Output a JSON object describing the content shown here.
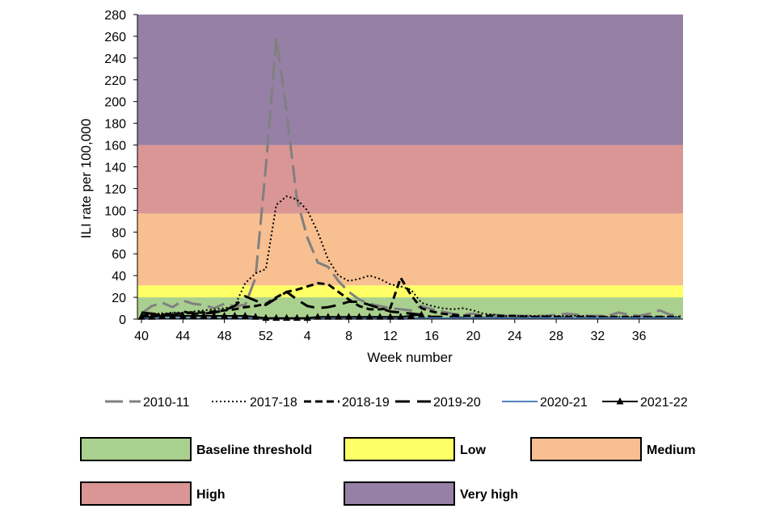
{
  "chart_data": {
    "type": "line",
    "title": "",
    "xlabel": "Week number",
    "ylabel": "ILI rate per 100,000",
    "ylim": [
      0,
      280
    ],
    "y_ticks": [
      0,
      20,
      40,
      60,
      80,
      100,
      120,
      140,
      160,
      180,
      200,
      220,
      240,
      260,
      280
    ],
    "x_tick_labels": [
      "40",
      "44",
      "48",
      "52",
      "4",
      "8",
      "12",
      "16",
      "20",
      "24",
      "28",
      "32",
      "36"
    ],
    "weeks": [
      40,
      41,
      42,
      43,
      44,
      45,
      46,
      47,
      48,
      49,
      50,
      51,
      52,
      53,
      1,
      2,
      3,
      4,
      5,
      6,
      7,
      8,
      9,
      10,
      11,
      12,
      13,
      14,
      15,
      16,
      17,
      18,
      19,
      20,
      21,
      22,
      23,
      24,
      25,
      26,
      27,
      28,
      29,
      30,
      31,
      32,
      33,
      34,
      35,
      36,
      37,
      38,
      39
    ],
    "grid": false,
    "legend_position": "bottom",
    "bands": [
      {
        "name": "Baseline threshold",
        "from": 0,
        "to": 20,
        "color": "#a9d08e"
      },
      {
        "name": "Low",
        "from": 20,
        "to": 31,
        "color": "#ffff66"
      },
      {
        "name": "Medium",
        "from": 31,
        "to": 97,
        "color": "#f8bf90"
      },
      {
        "name": "High",
        "from": 97,
        "to": 160,
        "color": "#da9694"
      },
      {
        "name": "Very high",
        "from": 160,
        "to": 280,
        "color": "#9680a6"
      }
    ],
    "series": [
      {
        "name": "2010-11",
        "color": "#808080",
        "dash": "22 8",
        "width": 3,
        "values": [
          5,
          12,
          15,
          11,
          17,
          14,
          13,
          10,
          14,
          12,
          13,
          38,
          140,
          258,
          190,
          110,
          75,
          52,
          48,
          35,
          25,
          18,
          14,
          12,
          10,
          9,
          8,
          12,
          9,
          7,
          5,
          4,
          5,
          3,
          4,
          3,
          3,
          3,
          3,
          3,
          4,
          5,
          4,
          3,
          3,
          3,
          6,
          4,
          3,
          5,
          8,
          4,
          4
        ]
      },
      {
        "name": "2017-18",
        "color": "#000000",
        "dash": "2 3",
        "width": 2,
        "values": [
          4,
          5,
          5,
          6,
          6,
          7,
          8,
          9,
          10,
          12,
          33,
          42,
          46,
          105,
          113,
          110,
          100,
          80,
          55,
          40,
          35,
          37,
          40,
          37,
          32,
          30,
          27,
          15,
          12,
          10,
          9,
          10,
          8,
          5,
          4,
          3,
          3,
          3,
          3,
          3,
          3,
          3,
          3,
          3,
          2,
          2,
          2,
          2,
          2,
          2,
          2,
          2,
          2
        ]
      },
      {
        "name": "2018-19",
        "color": "#000000",
        "dash": "9 5",
        "width": 3,
        "values": [
          3,
          4,
          4,
          5,
          5,
          6,
          6,
          7,
          8,
          9,
          11,
          12,
          14,
          20,
          25,
          27,
          30,
          33,
          32,
          25,
          18,
          12,
          9,
          9,
          10,
          38,
          22,
          10,
          7,
          5,
          4,
          3,
          3,
          3,
          3,
          3,
          3,
          2,
          2,
          2,
          2,
          2,
          2,
          2,
          2,
          2,
          2,
          2,
          2,
          2,
          2,
          2,
          2
        ]
      },
      {
        "name": "2019-20",
        "color": "#000000",
        "dash": "18 9",
        "width": 3,
        "values": [
          6,
          5,
          4,
          3,
          7,
          5,
          5,
          6,
          8,
          12,
          21,
          17,
          13,
          19,
          25,
          18,
          12,
          10,
          11,
          13,
          16,
          16,
          13,
          10,
          7,
          6,
          5,
          4,
          2,
          2,
          2,
          1,
          1,
          1,
          1,
          1,
          1,
          1,
          1,
          1,
          1,
          1,
          1,
          1,
          1,
          1,
          1,
          1,
          1,
          1,
          1,
          1,
          1
        ]
      },
      {
        "name": "2020-21",
        "color": "#4f81bd",
        "dash": "",
        "width": 2,
        "values": [
          1,
          1,
          1,
          1,
          1,
          1,
          1,
          1,
          1,
          1,
          1,
          1,
          1,
          1,
          1,
          1,
          1,
          1,
          1,
          1,
          1,
          1,
          1,
          1,
          1,
          1,
          1,
          1,
          1,
          1,
          1,
          1,
          1,
          1,
          1,
          1,
          1,
          1,
          1,
          1,
          1,
          1,
          1,
          1,
          1,
          1,
          1,
          1,
          1,
          1,
          1,
          1,
          1
        ]
      },
      {
        "name": "2021-22",
        "color": "#000000",
        "dash": "",
        "width": 2,
        "marker": "triangle",
        "values": [
          2,
          2,
          3,
          3,
          3,
          3,
          3,
          3,
          3,
          3,
          3,
          2,
          1,
          1,
          1,
          1,
          1,
          2,
          2,
          2,
          2,
          2,
          2,
          2,
          2,
          2,
          3,
          4
        ]
      }
    ]
  }
}
